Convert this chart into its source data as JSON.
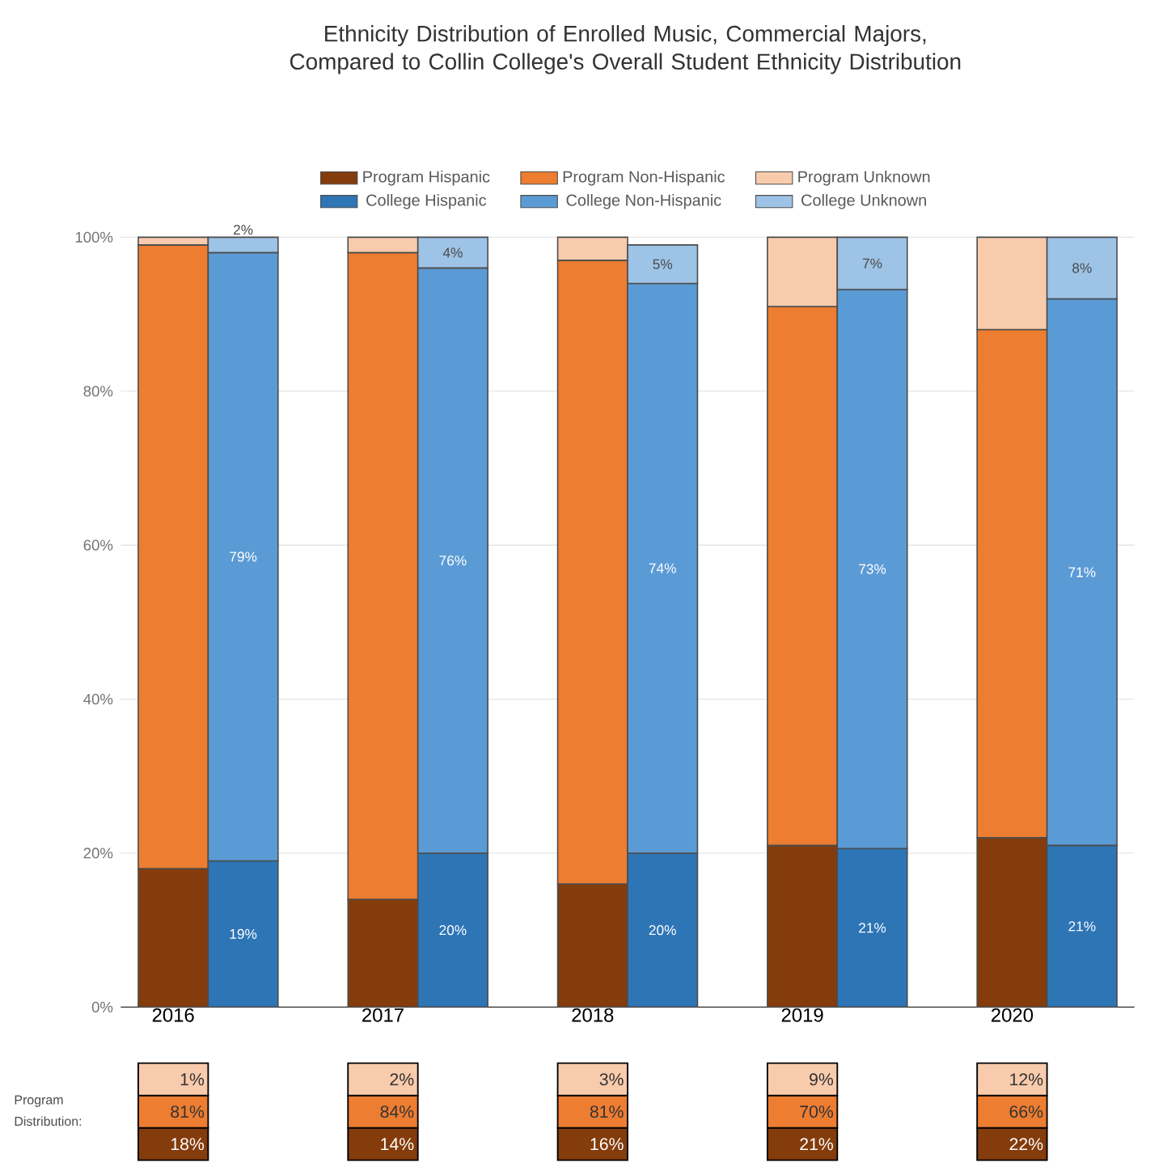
{
  "chart_data": {
    "type": "bar",
    "title": "Ethnicity Distribution of Enrolled Music, Commercial Majors, Compared to Collin College's Overall Student Ethnicity Distribution",
    "categories": [
      "2016",
      null,
      null,
      "2017",
      null,
      null,
      "2018",
      null,
      null,
      "2019",
      null,
      null,
      "2020",
      null
    ],
    "stacked": true,
    "series": [
      {
        "name": "Program Hispanic",
        "color": "#843c0c",
        "values": [
          18,
          null,
          null,
          14,
          null,
          null,
          16,
          null,
          null,
          21,
          null,
          null,
          22,
          null
        ],
        "value_labels": [
          "18%",
          null,
          null,
          "14%",
          null,
          null,
          "16%",
          null,
          null,
          "21%",
          null,
          null,
          "22%",
          null
        ]
      },
      {
        "name": "Program Non-Hispanic",
        "color": "#ed7d31",
        "values": [
          81,
          null,
          null,
          84,
          null,
          null,
          81,
          null,
          null,
          70,
          null,
          null,
          66,
          null
        ],
        "value_labels": [
          "81%",
          null,
          null,
          "84%",
          null,
          null,
          "81%",
          null,
          null,
          "70%",
          null,
          null,
          "66%",
          null
        ]
      },
      {
        "name": "Program Unknown",
        "color": "#f8cbad",
        "values": [
          1,
          null,
          null,
          2,
          null,
          null,
          3,
          null,
          null,
          9,
          null,
          null,
          12,
          null
        ],
        "value_labels": [
          "1%",
          null,
          null,
          "2%",
          null,
          null,
          "3%",
          null,
          null,
          "9%",
          null,
          null,
          "12%",
          null
        ]
      },
      {
        "name": "College Hispanic",
        "color": "#2e75b6",
        "values": [
          null,
          19,
          null,
          null,
          20,
          null,
          null,
          20,
          null,
          null,
          20.6,
          null,
          null,
          21
        ],
        "value_labels": [
          null,
          "19%",
          null,
          null,
          "20%",
          null,
          null,
          "20%",
          null,
          null,
          "21%",
          null,
          null,
          "21%"
        ]
      },
      {
        "name": "College Non-Hispanic",
        "color": "#5b9bd5",
        "values": [
          null,
          79,
          null,
          null,
          76,
          null,
          null,
          74,
          null,
          null,
          72.6,
          null,
          null,
          71
        ],
        "value_labels": [
          null,
          "79%",
          null,
          null,
          "76%",
          null,
          null,
          "74%",
          null,
          null,
          "73%",
          null,
          null,
          "71%"
        ]
      },
      {
        "name": "College Unknown",
        "color": "#9dc3e6",
        "values": [
          null,
          2,
          null,
          null,
          4,
          null,
          null,
          5,
          null,
          null,
          6.8,
          null,
          null,
          8
        ],
        "value_labels": [
          null,
          "2%",
          null,
          null,
          "4%",
          null,
          null,
          "5%",
          null,
          null,
          "7%",
          null,
          null,
          "8%"
        ]
      }
    ],
    "ylim": [
      0,
      100
    ],
    "yticks": [
      {
        "value": 0,
        "label": "0%"
      },
      {
        "value": 20,
        "label": "20%"
      },
      {
        "value": 40,
        "label": "40%"
      },
      {
        "value": 60,
        "label": "60%"
      },
      {
        "value": 80,
        "label": "80%"
      },
      {
        "value": 100,
        "label": "100%"
      }
    ],
    "grid": "y",
    "legend": "top",
    "annotations": [
      "Program Distribution:"
    ]
  }
}
